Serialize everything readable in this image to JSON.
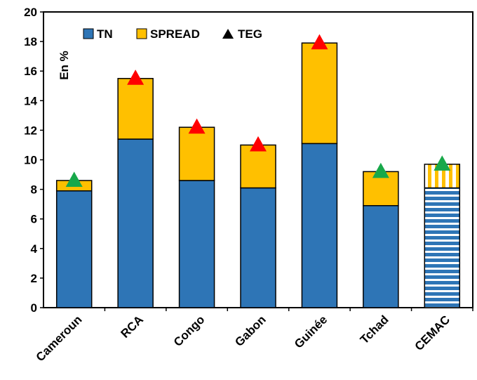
{
  "chart_data": {
    "type": "bar",
    "stacked": true,
    "categories": [
      "Cameroun",
      "RCA",
      "Congo",
      "Gabon",
      "Guinée",
      "Tchad",
      "CEMAC"
    ],
    "series": [
      {
        "name": "TN",
        "values": [
          7.9,
          11.4,
          8.6,
          8.1,
          11.1,
          6.9,
          8.1
        ]
      },
      {
        "name": "SPREAD",
        "values": [
          0.7,
          4.1,
          3.6,
          2.9,
          6.8,
          2.3,
          1.6
        ]
      },
      {
        "name": "TEG",
        "type": "marker",
        "values": [
          8.6,
          15.5,
          12.2,
          11.0,
          17.9,
          9.2,
          9.7
        ]
      }
    ],
    "teg_marker_colors": [
      "#18a84a",
      "#ff0000",
      "#ff0000",
      "#ff0000",
      "#ff0000",
      "#18a84a",
      "#18a84a"
    ],
    "ylim": [
      0,
      20
    ],
    "yticks": [
      0,
      2,
      4,
      6,
      8,
      10,
      12,
      14,
      16,
      18,
      20
    ],
    "ylabel": "En %",
    "xlabel": "",
    "legend_position": "top-left",
    "grid": false,
    "colors": {
      "TN": "#2e75b6",
      "SPREAD": "#ffc000",
      "marker_legend": "#000000",
      "outline": "#000000"
    },
    "highlight_category": "CEMAC",
    "highlight_pattern": "striped"
  }
}
